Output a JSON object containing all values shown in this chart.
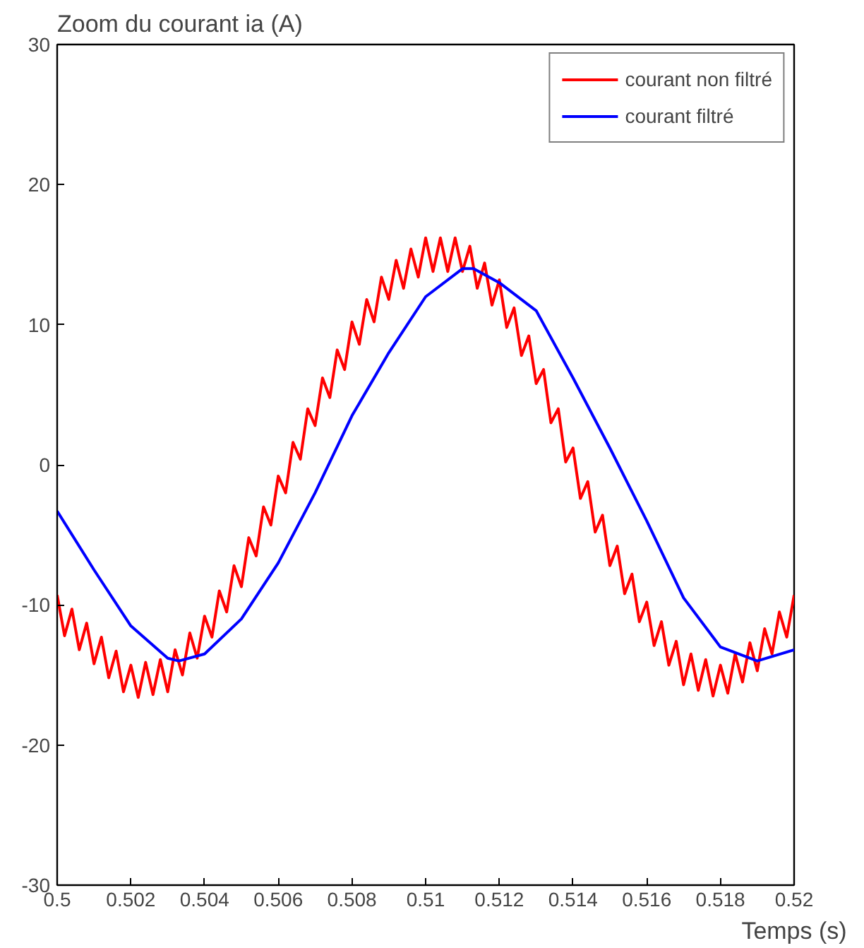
{
  "chart_data": {
    "type": "line",
    "title": "Zoom du courant ia (A)",
    "xlabel": "Temps (s)",
    "xlim": [
      0.5,
      0.52
    ],
    "xticks": [
      0.5,
      0.502,
      0.504,
      0.506,
      0.508,
      0.51,
      0.512,
      0.514,
      0.516,
      0.518,
      0.52
    ],
    "ylim": [
      -30,
      30
    ],
    "yticks": [
      -30,
      -20,
      -10,
      0,
      10,
      20,
      30
    ],
    "grid": false,
    "legend": "top right",
    "marker": "none",
    "line_style": "solid",
    "series": [
      {
        "name": "courant non filtré",
        "color": "#ff0000",
        "x": [
          0.5,
          0.5002,
          0.5004,
          0.5006,
          0.5008,
          0.501,
          0.5012,
          0.5014,
          0.5016,
          0.5018,
          0.502,
          0.5022,
          0.5024,
          0.5026,
          0.5028,
          0.503,
          0.5032,
          0.5034,
          0.5036,
          0.5038,
          0.504,
          0.5042,
          0.5044,
          0.5046,
          0.5048,
          0.505,
          0.5052,
          0.5054,
          0.5056,
          0.5058,
          0.506,
          0.5062,
          0.5064,
          0.5066,
          0.5068,
          0.507,
          0.5072,
          0.5074,
          0.5076,
          0.5078,
          0.508,
          0.5082,
          0.5084,
          0.5086,
          0.5088,
          0.509,
          0.5092,
          0.5094,
          0.5096,
          0.5098,
          0.51,
          0.5102,
          0.5104,
          0.5106,
          0.5108,
          0.511,
          0.5112,
          0.5114,
          0.5116,
          0.5118,
          0.512,
          0.5122,
          0.5124,
          0.5126,
          0.5128,
          0.513,
          0.5132,
          0.5134,
          0.5136,
          0.5138,
          0.514,
          0.5142,
          0.5144,
          0.5146,
          0.5148,
          0.515,
          0.5152,
          0.5154,
          0.5156,
          0.5158,
          0.516,
          0.5162,
          0.5164,
          0.5166,
          0.5168,
          0.517,
          0.5172,
          0.5174,
          0.5176,
          0.5178,
          0.518,
          0.5182,
          0.5184,
          0.5186,
          0.5188,
          0.519,
          0.5192,
          0.5194,
          0.5196,
          0.5198,
          0.52
        ],
        "values": [
          -9.3,
          -12.2,
          -10.3,
          -13.2,
          -11.3,
          -14.2,
          -12.3,
          -15.2,
          -13.3,
          -16.2,
          -14.3,
          -16.6,
          -14.1,
          -16.4,
          -13.9,
          -16.2,
          -13.2,
          -15.0,
          -12.0,
          -13.8,
          -10.8,
          -12.3,
          -9.0,
          -10.5,
          -7.2,
          -8.7,
          -5.2,
          -6.5,
          -3.0,
          -4.3,
          -0.8,
          -2.0,
          1.6,
          0.4,
          4.0,
          2.8,
          6.2,
          4.8,
          8.2,
          6.8,
          10.2,
          8.6,
          11.8,
          10.2,
          13.4,
          11.8,
          14.6,
          12.6,
          15.4,
          13.4,
          16.2,
          13.8,
          16.2,
          13.8,
          16.2,
          13.8,
          15.6,
          12.6,
          14.4,
          11.4,
          13.2,
          9.8,
          11.2,
          7.8,
          9.2,
          5.8,
          6.8,
          3.0,
          4.0,
          0.2,
          1.2,
          -2.4,
          -1.2,
          -4.8,
          -3.6,
          -7.2,
          -5.8,
          -9.2,
          -7.8,
          -11.2,
          -9.8,
          -12.9,
          -11.2,
          -14.3,
          -12.6,
          -15.7,
          -13.5,
          -16.1,
          -13.9,
          -16.5,
          -14.3,
          -16.3,
          -13.5,
          -15.5,
          -12.7,
          -14.7,
          -11.7,
          -13.5,
          -10.5,
          -12.3,
          -9.3
        ]
      },
      {
        "name": "courant filtré",
        "color": "#0000ff",
        "x": [
          0.5,
          0.501,
          0.502,
          0.503,
          0.5033,
          0.504,
          0.505,
          0.506,
          0.507,
          0.508,
          0.509,
          0.51,
          0.511,
          0.5113,
          0.512,
          0.513,
          0.514,
          0.515,
          0.516,
          0.517,
          0.518,
          0.519,
          0.52
        ],
        "values": [
          -3.3,
          -7.5,
          -11.5,
          -13.8,
          -14,
          -13.5,
          -11,
          -7,
          -2,
          3.5,
          8,
          12,
          14,
          14,
          13,
          11,
          6.2,
          1.2,
          -4,
          -9.5,
          -13,
          -14,
          -13.2
        ]
      }
    ]
  }
}
